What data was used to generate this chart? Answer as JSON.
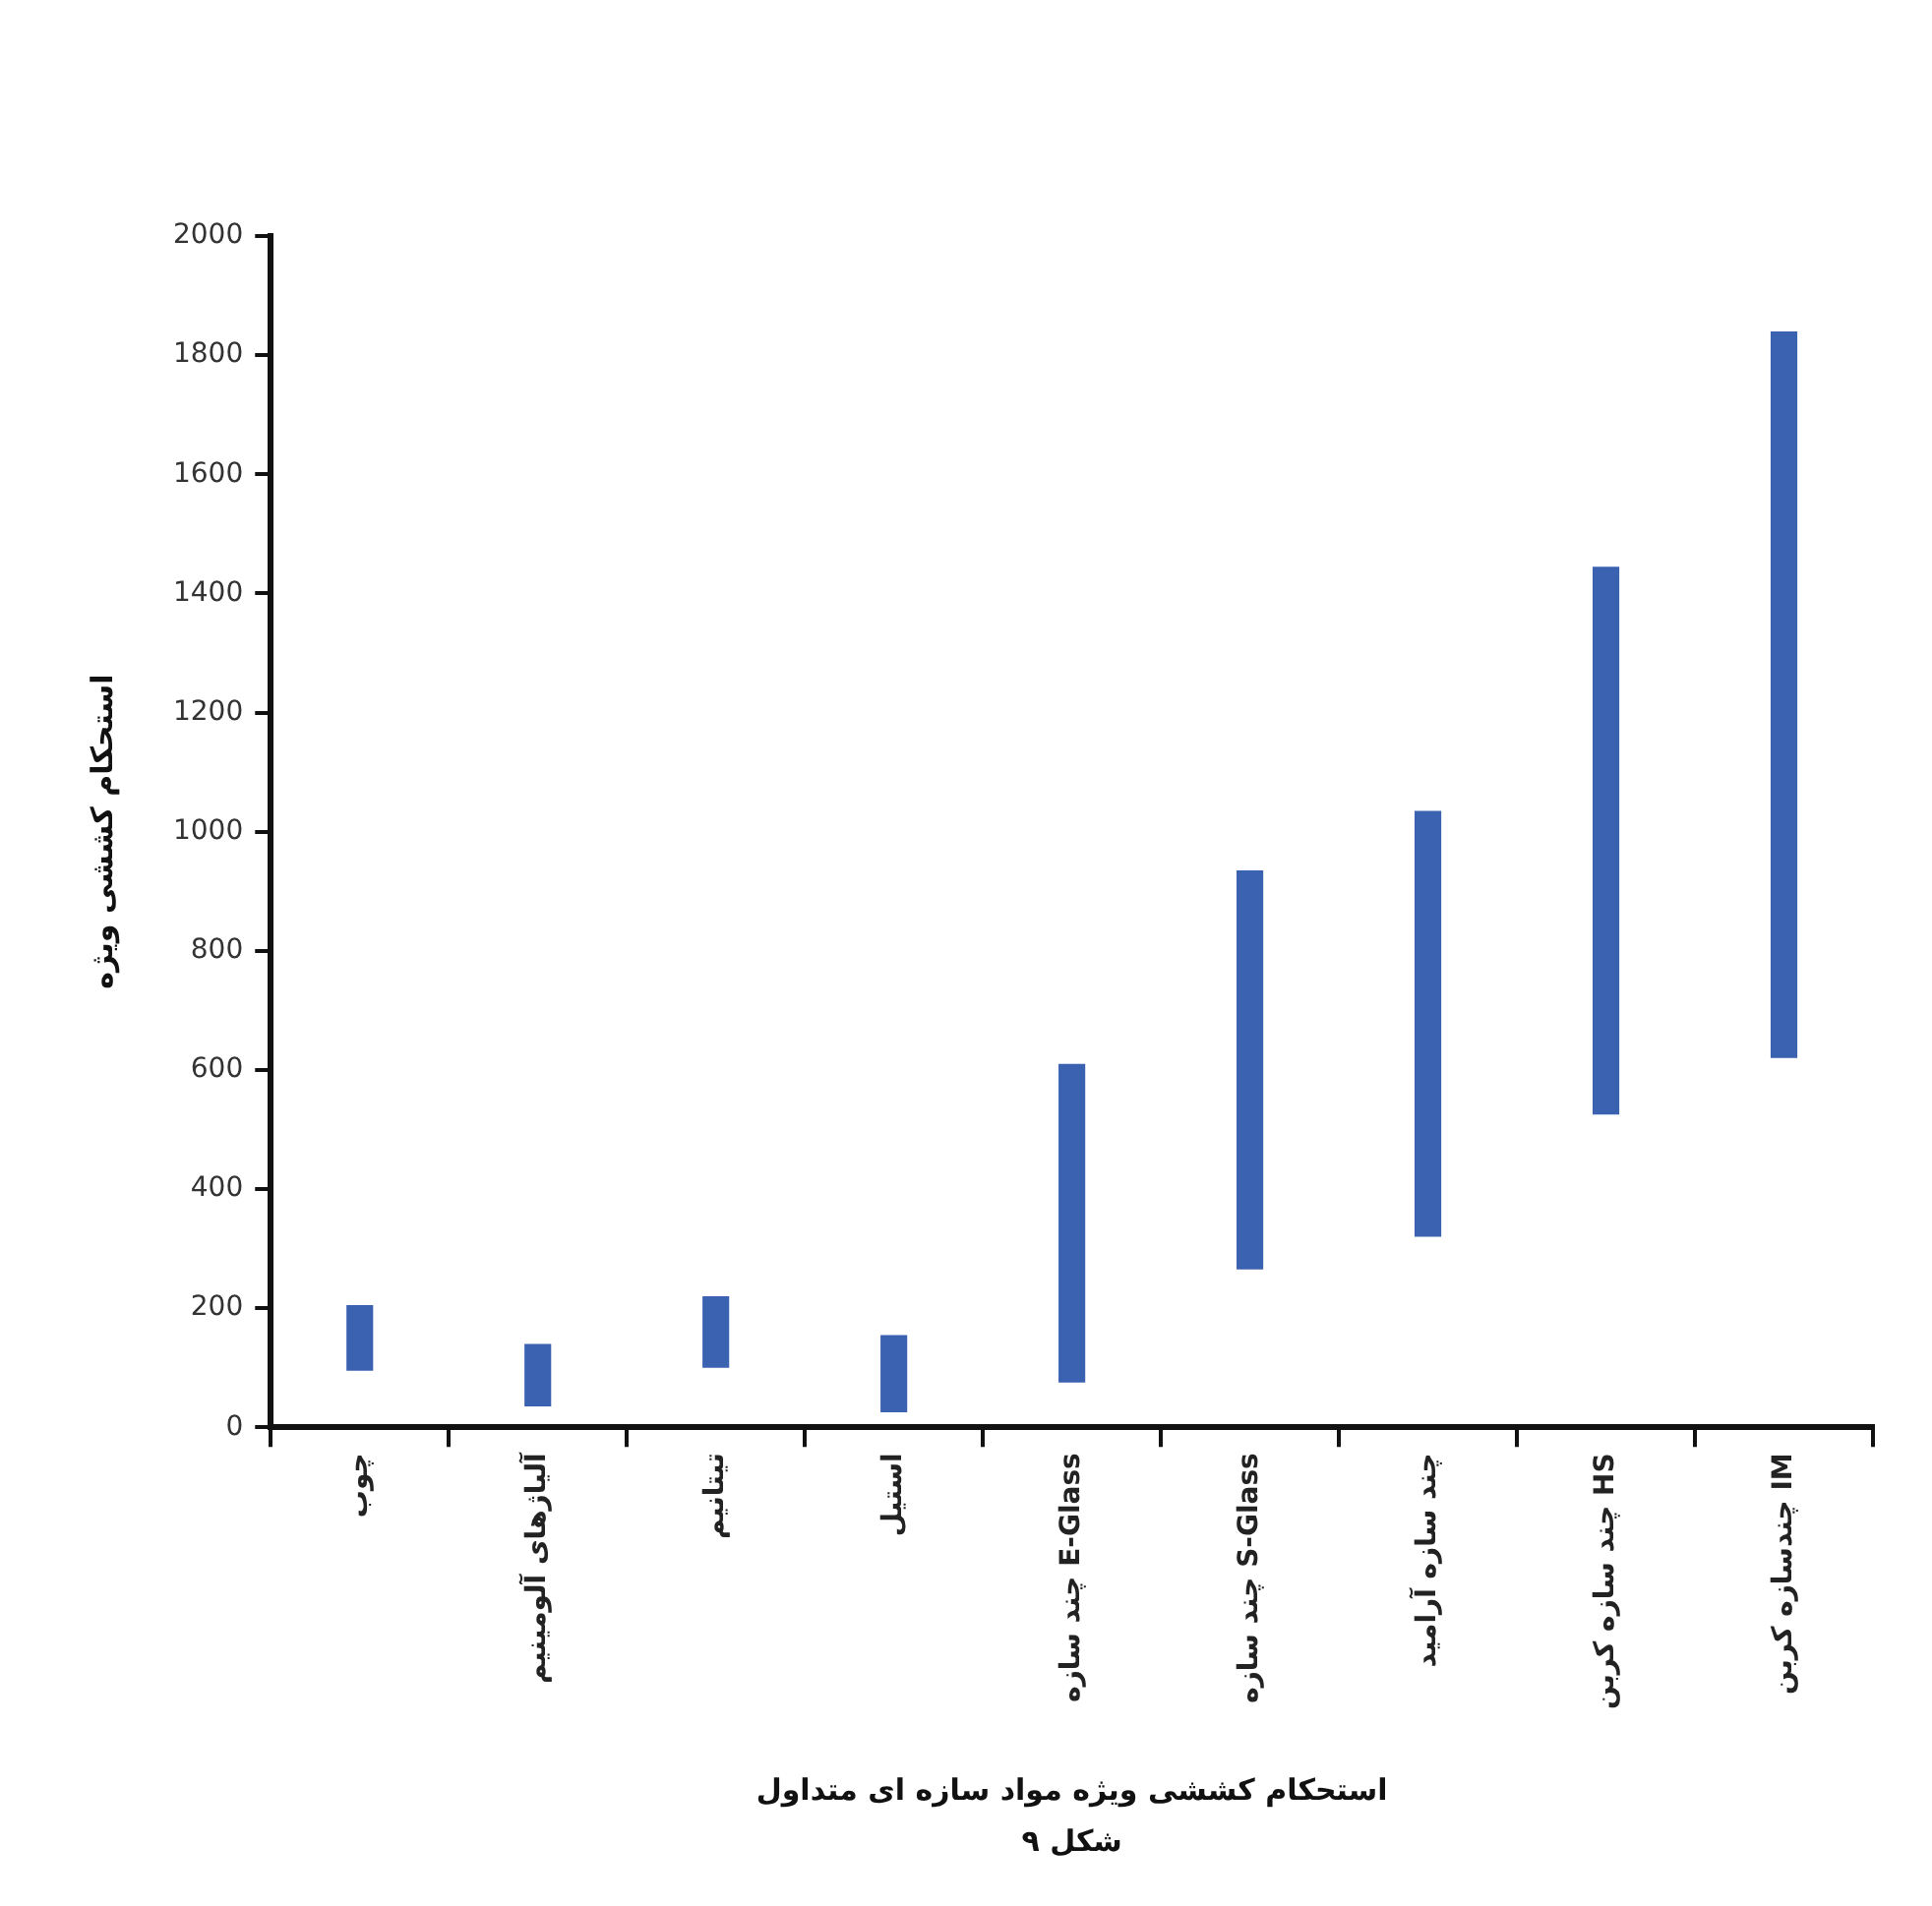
{
  "chart_data": {
    "type": "bar",
    "categories": [
      "چوب",
      "آلیاژهای آلومینیم",
      "تیتانیم",
      "استیل",
      "چند سازه E-Glass",
      "چند سازه S-Glass",
      "چند سازه آرامید",
      "چند سازه کربن HS",
      "چندسازه کربن IM"
    ],
    "base": [
      95,
      35,
      100,
      25,
      75,
      265,
      320,
      525,
      620
    ],
    "values": [
      110,
      105,
      120,
      130,
      535,
      670,
      715,
      920,
      1220
    ],
    "color": "#3a62b0",
    "ylabel": "استحکام کششی ویژه",
    "xlabel": "استحکام کششی ویژه مواد سازه ای متداول",
    "annotations": [
      "شکل ۹"
    ],
    "ylim": [
      0,
      2000
    ],
    "yticks": [
      0,
      200,
      400,
      600,
      800,
      1000,
      1200,
      1400,
      1600,
      1800,
      2000
    ],
    "grid": false,
    "legend": false
  }
}
